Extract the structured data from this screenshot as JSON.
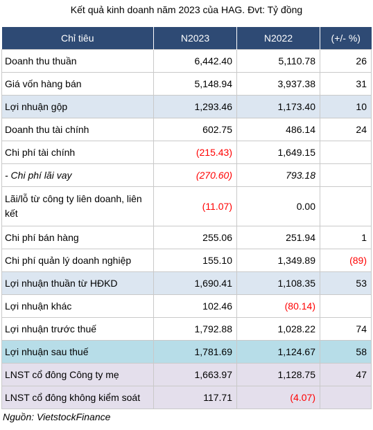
{
  "caption": "Kết quả kinh doanh năm 2023 của HAG. Đvt: Tỷ đồng",
  "headers": [
    "Chỉ tiêu",
    "N2023",
    "N2022",
    "(+/- %)"
  ],
  "rows": [
    {
      "label": "Doanh thu thuần",
      "n2023": "6,442.40",
      "n2022": "5,110.78",
      "change": "26"
    },
    {
      "label": "Giá vốn hàng bán",
      "n2023": "5,148.94",
      "n2022": "3,937.38",
      "change": "31"
    },
    {
      "label": "Lợi nhuận gộp",
      "n2023": "1,293.46",
      "n2022": "1,173.40",
      "change": "10"
    },
    {
      "label": "Doanh thu tài chính",
      "n2023": "602.75",
      "n2022": "486.14",
      "change": "24"
    },
    {
      "label": "Chi phí tài chính",
      "n2023": "(215.43)",
      "n2022": "1,649.15",
      "change": ""
    },
    {
      "label": "- Chi phí lãi vay",
      "n2023": "(270.60)",
      "n2022": "793.18",
      "change": ""
    },
    {
      "label": "Lãi/lỗ từ công ty liên doanh, liên kết",
      "n2023": "(11.07)",
      "n2022": "0.00",
      "change": ""
    },
    {
      "label": "Chi phí bán hàng",
      "n2023": "255.06",
      "n2022": "251.94",
      "change": "1"
    },
    {
      "label": "Chi phí quản lý doanh nghiệp",
      "n2023": "155.10",
      "n2022": "1,349.89",
      "change": "(89)"
    },
    {
      "label": "Lợi nhuận thuần từ HĐKD",
      "n2023": "1,690.41",
      "n2022": "1,108.35",
      "change": "53"
    },
    {
      "label": "Lợi nhuận khác",
      "n2023": "102.46",
      "n2022": "(80.14)",
      "change": ""
    },
    {
      "label": "Lợi nhuận trước thuế",
      "n2023": "1,792.88",
      "n2022": "1,028.22",
      "change": "74"
    },
    {
      "label": "Lợi nhuận sau thuế",
      "n2023": "1,781.69",
      "n2022": "1,124.67",
      "change": "58"
    },
    {
      "label": "LNST cổ đông Công ty mẹ",
      "n2023": "1,663.97",
      "n2022": "1,128.75",
      "change": "47"
    },
    {
      "label": "LNST cổ đông không kiểm soát",
      "n2023": "117.71",
      "n2022": "(4.07)",
      "change": ""
    }
  ],
  "source": "Nguồn: VietstockFinance",
  "colors": {
    "header_bg": "#2e4a74",
    "highlight_blue": "#dce6f1",
    "highlight_cyan": "#b7dde8",
    "highlight_purple": "#e4dfec",
    "negative": "#ff0000"
  }
}
